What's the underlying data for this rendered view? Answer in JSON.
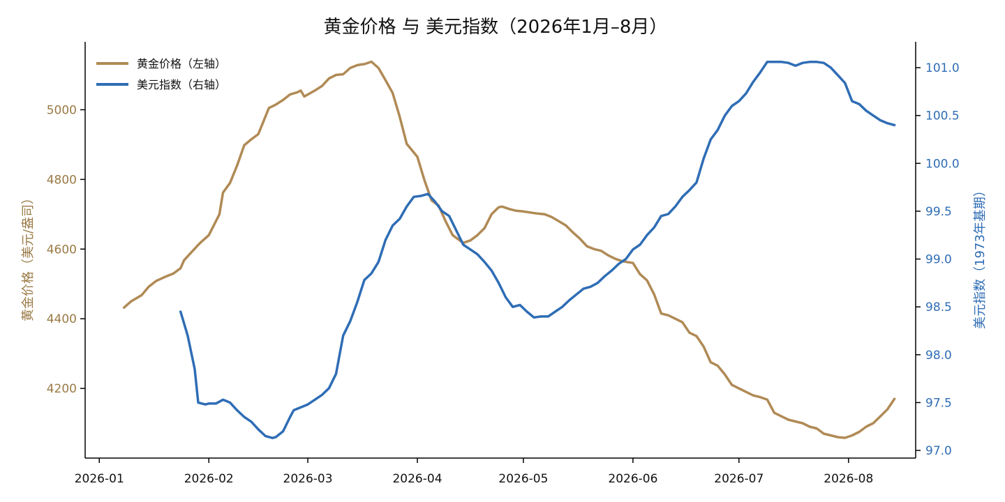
{
  "chart_data": {
    "type": "line",
    "title": "黄金价格 与 美元指数（2026年1月–8月）",
    "x_ticks": [
      "2026-01",
      "2026-02",
      "2026-03",
      "2026-04",
      "2026-05",
      "2026-06",
      "2026-07",
      "2026-08"
    ],
    "xlim": [
      "2025-12-28",
      "2026-08-20"
    ],
    "y_left": {
      "label": "黄金价格（美元/盎司）",
      "ticks": [
        4200,
        4400,
        4600,
        4800,
        5000
      ],
      "ylim": [
        4000,
        5195
      ],
      "color": "#b08a55"
    },
    "y_right": {
      "label": "美元指数（1973年基期）",
      "ticks": [
        97.0,
        97.5,
        98.0,
        98.5,
        99.0,
        99.5,
        100.0,
        100.5,
        101.0
      ],
      "tick_labels": [
        "97.0",
        "97.5",
        "98.0",
        "98.5",
        "99.0",
        "99.5",
        "100.0",
        "100.5",
        "101.0"
      ],
      "ylim": [
        96.92,
        101.27
      ],
      "color": "#2f6db5"
    },
    "legend": {
      "placement": "top-left",
      "entries": [
        "黄金价格（左轴）",
        "美元指数（右轴）"
      ]
    },
    "grid": false,
    "series": [
      {
        "name": "黄金价格（左轴）",
        "axis": "left",
        "color": "#b08a55",
        "x": [
          "2026-01-08",
          "2026-01-10",
          "2026-01-13",
          "2026-01-15",
          "2026-01-17",
          "2026-01-20",
          "2026-01-22",
          "2026-01-24",
          "2026-01-25",
          "2026-01-27",
          "2026-01-29",
          "2026-01-30",
          "2026-02-01",
          "2026-02-04",
          "2026-02-05",
          "2026-02-07",
          "2026-02-09",
          "2026-02-11",
          "2026-02-13",
          "2026-02-15",
          "2026-02-18",
          "2026-02-20",
          "2026-02-22",
          "2026-02-24",
          "2026-02-26",
          "2026-02-27",
          "2026-02-28",
          "2026-03-03",
          "2026-03-05",
          "2026-03-07",
          "2026-03-09",
          "2026-03-11",
          "2026-03-13",
          "2026-03-15",
          "2026-03-16",
          "2026-03-17",
          "2026-03-19",
          "2026-03-21",
          "2026-03-23",
          "2026-03-25",
          "2026-03-27",
          "2026-03-29",
          "2026-04-01",
          "2026-04-03",
          "2026-04-05",
          "2026-04-07",
          "2026-04-09",
          "2026-04-11",
          "2026-04-13",
          "2026-04-14",
          "2026-04-16",
          "2026-04-18",
          "2026-04-20",
          "2026-04-22",
          "2026-04-24",
          "2026-04-25",
          "2026-04-27",
          "2026-04-29",
          "2026-05-01",
          "2026-05-03",
          "2026-05-05",
          "2026-05-07",
          "2026-05-09",
          "2026-05-11",
          "2026-05-13",
          "2026-05-15",
          "2026-05-17",
          "2026-05-19",
          "2026-05-21",
          "2026-05-23",
          "2026-05-25",
          "2026-05-27",
          "2026-05-29",
          "2026-06-01",
          "2026-06-03",
          "2026-06-05",
          "2026-06-07",
          "2026-06-09",
          "2026-06-11",
          "2026-06-13",
          "2026-06-15",
          "2026-06-17",
          "2026-06-19",
          "2026-06-21",
          "2026-06-23",
          "2026-06-25",
          "2026-06-27",
          "2026-06-29",
          "2026-07-01",
          "2026-07-03",
          "2026-07-05",
          "2026-07-07",
          "2026-07-09",
          "2026-07-11",
          "2026-07-13",
          "2026-07-15",
          "2026-07-17",
          "2026-07-19",
          "2026-07-21",
          "2026-07-23",
          "2026-07-25",
          "2026-07-27",
          "2026-07-29",
          "2026-07-31",
          "2026-08-02",
          "2026-08-04",
          "2026-08-06",
          "2026-08-08",
          "2026-08-10",
          "2026-08-12",
          "2026-08-14"
        ],
        "values": [
          4432,
          4450,
          4468,
          4492,
          4508,
          4522,
          4530,
          4545,
          4568,
          4590,
          4612,
          4622,
          4640,
          4700,
          4762,
          4790,
          4840,
          4898,
          4915,
          4930,
          5005,
          5015,
          5028,
          5044,
          5050,
          5055,
          5038,
          5055,
          5068,
          5090,
          5100,
          5102,
          5120,
          5128,
          5130,
          5131,
          5138,
          5120,
          5085,
          5048,
          4980,
          4902,
          4865,
          4798,
          4740,
          4725,
          4680,
          4640,
          4625,
          4618,
          4625,
          4640,
          4660,
          4700,
          4720,
          4722,
          4715,
          4710,
          4708,
          4705,
          4702,
          4700,
          4692,
          4680,
          4668,
          4648,
          4630,
          4608,
          4600,
          4595,
          4582,
          4572,
          4565,
          4560,
          4528,
          4510,
          4470,
          4415,
          4410,
          4400,
          4390,
          4360,
          4350,
          4320,
          4275,
          4265,
          4240,
          4210,
          4200,
          4190,
          4180,
          4175,
          4168,
          4130,
          4120,
          4110,
          4105,
          4100,
          4090,
          4085,
          4070,
          4065,
          4060,
          4058,
          4065,
          4075,
          4090,
          4100,
          4120,
          4140,
          4170
        ]
      },
      {
        "name": "美元指数（右轴）",
        "axis": "right",
        "color": "#2f6db5",
        "x": [
          "2026-01-24",
          "2026-01-26",
          "2026-01-28",
          "2026-01-29",
          "2026-01-31",
          "2026-02-01",
          "2026-02-03",
          "2026-02-05",
          "2026-02-07",
          "2026-02-09",
          "2026-02-11",
          "2026-02-13",
          "2026-02-15",
          "2026-02-17",
          "2026-02-19",
          "2026-02-20",
          "2026-02-22",
          "2026-02-24",
          "2026-02-25",
          "2026-02-27",
          "2026-03-01",
          "2026-03-03",
          "2026-03-05",
          "2026-03-07",
          "2026-03-09",
          "2026-03-11",
          "2026-03-13",
          "2026-03-15",
          "2026-03-17",
          "2026-03-19",
          "2026-03-21",
          "2026-03-23",
          "2026-03-25",
          "2026-03-27",
          "2026-03-29",
          "2026-03-31",
          "2026-04-02",
          "2026-04-04",
          "2026-04-06",
          "2026-04-08",
          "2026-04-10",
          "2026-04-12",
          "2026-04-14",
          "2026-04-16",
          "2026-04-18",
          "2026-04-20",
          "2026-04-22",
          "2026-04-24",
          "2026-04-26",
          "2026-04-28",
          "2026-04-30",
          "2026-05-02",
          "2026-05-04",
          "2026-05-06",
          "2026-05-08",
          "2026-05-10",
          "2026-05-12",
          "2026-05-14",
          "2026-05-16",
          "2026-05-18",
          "2026-05-20",
          "2026-05-22",
          "2026-05-24",
          "2026-05-26",
          "2026-05-28",
          "2026-05-30",
          "2026-06-01",
          "2026-06-03",
          "2026-06-05",
          "2026-06-07",
          "2026-06-09",
          "2026-06-11",
          "2026-06-13",
          "2026-06-15",
          "2026-06-17",
          "2026-06-19",
          "2026-06-21",
          "2026-06-23",
          "2026-06-25",
          "2026-06-27",
          "2026-06-29",
          "2026-07-01",
          "2026-07-03",
          "2026-07-05",
          "2026-07-07",
          "2026-07-09",
          "2026-07-11",
          "2026-07-13",
          "2026-07-15",
          "2026-07-17",
          "2026-07-19",
          "2026-07-21",
          "2026-07-23",
          "2026-07-25",
          "2026-07-27",
          "2026-07-29",
          "2026-07-31",
          "2026-08-02",
          "2026-08-04",
          "2026-08-06",
          "2026-08-08",
          "2026-08-10",
          "2026-08-12",
          "2026-08-14"
        ],
        "values": [
          98.45,
          98.2,
          97.85,
          97.5,
          97.48,
          97.49,
          97.49,
          97.53,
          97.5,
          97.42,
          97.35,
          97.3,
          97.22,
          97.15,
          97.13,
          97.14,
          97.2,
          97.35,
          97.42,
          97.45,
          97.48,
          97.53,
          97.58,
          97.65,
          97.8,
          98.2,
          98.35,
          98.55,
          98.78,
          98.85,
          98.97,
          99.2,
          99.35,
          99.42,
          99.55,
          99.65,
          99.66,
          99.68,
          99.6,
          99.5,
          99.45,
          99.3,
          99.15,
          99.1,
          99.05,
          98.97,
          98.88,
          98.75,
          98.6,
          98.5,
          98.52,
          98.45,
          98.39,
          98.4,
          98.4,
          98.45,
          98.5,
          98.57,
          98.63,
          98.69,
          98.71,
          98.75,
          98.82,
          98.88,
          98.95,
          99.0,
          99.1,
          99.15,
          99.25,
          99.33,
          99.45,
          99.47,
          99.55,
          99.65,
          99.72,
          99.8,
          100.05,
          100.25,
          100.35,
          100.5,
          100.6,
          100.65,
          100.73,
          100.85,
          100.95,
          101.06,
          101.06,
          101.06,
          101.05,
          101.02,
          101.05,
          101.06,
          101.06,
          101.05,
          101.0,
          100.92,
          100.84,
          100.65,
          100.62,
          100.55,
          100.5,
          100.45,
          100.42,
          100.4
        ]
      }
    ]
  }
}
